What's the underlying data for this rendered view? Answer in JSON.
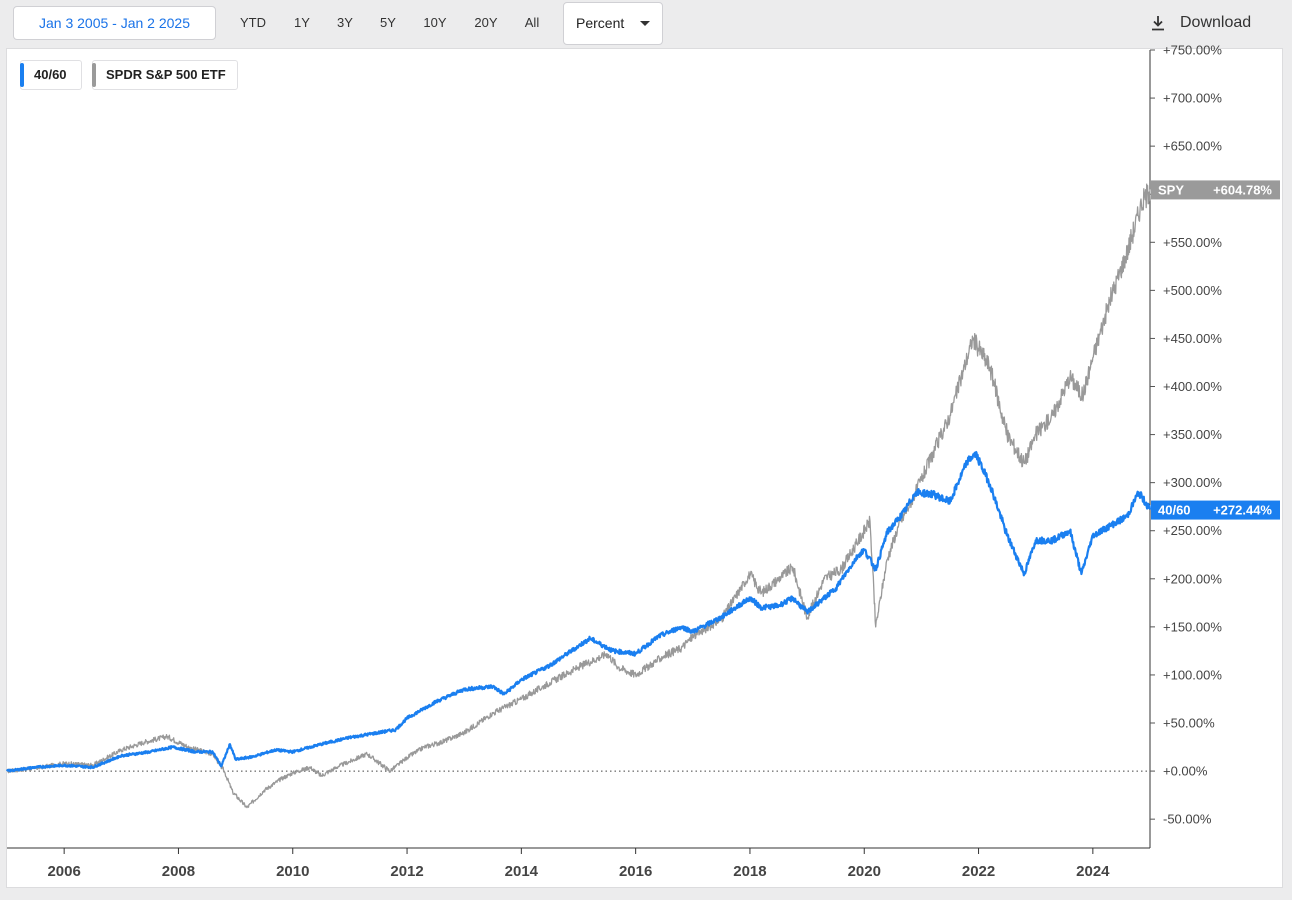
{
  "toolbar": {
    "date_range": "Jan 3 2005 - Jan 2 2025",
    "ranges": [
      "YTD",
      "1Y",
      "3Y",
      "5Y",
      "10Y",
      "20Y",
      "All"
    ],
    "mode": "Percent",
    "download": "Download"
  },
  "legend": [
    {
      "label": "40/60",
      "color": "#1a7ff0"
    },
    {
      "label": "SPDR S&P 500 ETF",
      "color": "#9a9a9a"
    }
  ],
  "tags": {
    "spy": {
      "name": "SPY",
      "value": "+604.78%"
    },
    "mix": {
      "name": "40/60",
      "value": "+272.44%"
    }
  },
  "chart_data": {
    "type": "line",
    "xlim": [
      2005.0,
      2025.0
    ],
    "ylim": [
      -80,
      750
    ],
    "x_ticks": [
      2006,
      2008,
      2010,
      2012,
      2014,
      2016,
      2018,
      2020,
      2022,
      2024
    ],
    "y_ticks": [
      {
        "v": 750,
        "label": "+750.00%"
      },
      {
        "v": 700,
        "label": "+700.00%"
      },
      {
        "v": 650,
        "label": "+650.00%"
      },
      {
        "v": 600,
        "label": "+600.00%"
      },
      {
        "v": 550,
        "label": "+550.00%"
      },
      {
        "v": 500,
        "label": "+500.00%"
      },
      {
        "v": 450,
        "label": "+450.00%"
      },
      {
        "v": 400,
        "label": "+400.00%"
      },
      {
        "v": 350,
        "label": "+350.00%"
      },
      {
        "v": 300,
        "label": "+300.00%"
      },
      {
        "v": 250,
        "label": "+250.00%"
      },
      {
        "v": 200,
        "label": "+200.00%"
      },
      {
        "v": 150,
        "label": "+150.00%"
      },
      {
        "v": 100,
        "label": "+100.00%"
      },
      {
        "v": 50,
        "label": "+50.00%"
      },
      {
        "v": 0,
        "label": "+0.00%"
      },
      {
        "v": -50,
        "label": "-50.00%"
      }
    ],
    "zero_line": true,
    "series": [
      {
        "name": "SPY",
        "color": "#999999",
        "points": [
          [
            2005.0,
            0
          ],
          [
            2005.5,
            3
          ],
          [
            2006.0,
            8
          ],
          [
            2006.5,
            6
          ],
          [
            2007.0,
            22
          ],
          [
            2007.4,
            30
          ],
          [
            2007.8,
            36
          ],
          [
            2008.2,
            24
          ],
          [
            2008.6,
            18
          ],
          [
            2008.8,
            0
          ],
          [
            2008.95,
            -22
          ],
          [
            2009.2,
            -38
          ],
          [
            2009.5,
            -20
          ],
          [
            2009.8,
            -8
          ],
          [
            2010.0,
            -2
          ],
          [
            2010.3,
            4
          ],
          [
            2010.5,
            -5
          ],
          [
            2010.8,
            5
          ],
          [
            2011.0,
            10
          ],
          [
            2011.3,
            18
          ],
          [
            2011.7,
            0
          ],
          [
            2012.0,
            14
          ],
          [
            2012.3,
            25
          ],
          [
            2012.6,
            30
          ],
          [
            2013.0,
            40
          ],
          [
            2013.5,
            60
          ],
          [
            2014.0,
            75
          ],
          [
            2014.5,
            92
          ],
          [
            2015.0,
            108
          ],
          [
            2015.5,
            122
          ],
          [
            2015.7,
            108
          ],
          [
            2016.0,
            100
          ],
          [
            2016.3,
            112
          ],
          [
            2016.5,
            120
          ],
          [
            2016.8,
            128
          ],
          [
            2017.0,
            140
          ],
          [
            2017.5,
            158
          ],
          [
            2018.0,
            205
          ],
          [
            2018.2,
            185
          ],
          [
            2018.5,
            200
          ],
          [
            2018.75,
            212
          ],
          [
            2019.0,
            160
          ],
          [
            2019.3,
            200
          ],
          [
            2019.6,
            210
          ],
          [
            2019.9,
            240
          ],
          [
            2020.1,
            260
          ],
          [
            2020.2,
            150
          ],
          [
            2020.4,
            220
          ],
          [
            2020.6,
            255
          ],
          [
            2020.9,
            290
          ],
          [
            2021.2,
            330
          ],
          [
            2021.5,
            370
          ],
          [
            2021.9,
            450
          ],
          [
            2022.2,
            420
          ],
          [
            2022.5,
            350
          ],
          [
            2022.8,
            320
          ],
          [
            2023.0,
            350
          ],
          [
            2023.3,
            370
          ],
          [
            2023.6,
            410
          ],
          [
            2023.82,
            390
          ],
          [
            2024.0,
            430
          ],
          [
            2024.3,
            490
          ],
          [
            2024.6,
            540
          ],
          [
            2024.85,
            590
          ],
          [
            2025.0,
            605
          ]
        ]
      },
      {
        "name": "40/60",
        "color": "#1a7ff0",
        "points": [
          [
            2005.0,
            0
          ],
          [
            2005.5,
            4
          ],
          [
            2006.0,
            6
          ],
          [
            2006.5,
            4
          ],
          [
            2007.0,
            16
          ],
          [
            2007.5,
            20
          ],
          [
            2007.9,
            25
          ],
          [
            2008.3,
            20
          ],
          [
            2008.6,
            20
          ],
          [
            2008.75,
            5
          ],
          [
            2008.9,
            28
          ],
          [
            2009.0,
            12
          ],
          [
            2009.3,
            15
          ],
          [
            2009.7,
            22
          ],
          [
            2010.0,
            20
          ],
          [
            2010.5,
            28
          ],
          [
            2011.0,
            35
          ],
          [
            2011.5,
            40
          ],
          [
            2011.8,
            43
          ],
          [
            2012.0,
            55
          ],
          [
            2012.5,
            72
          ],
          [
            2013.0,
            85
          ],
          [
            2013.5,
            88
          ],
          [
            2013.7,
            80
          ],
          [
            2014.0,
            95
          ],
          [
            2014.5,
            110
          ],
          [
            2015.0,
            130
          ],
          [
            2015.2,
            138
          ],
          [
            2015.6,
            125
          ],
          [
            2016.0,
            122
          ],
          [
            2016.4,
            140
          ],
          [
            2016.8,
            150
          ],
          [
            2017.0,
            145
          ],
          [
            2017.5,
            160
          ],
          [
            2018.0,
            180
          ],
          [
            2018.2,
            170
          ],
          [
            2018.5,
            172
          ],
          [
            2018.75,
            180
          ],
          [
            2019.0,
            165
          ],
          [
            2019.5,
            190
          ],
          [
            2019.9,
            225
          ],
          [
            2020.0,
            230
          ],
          [
            2020.2,
            210
          ],
          [
            2020.4,
            248
          ],
          [
            2020.7,
            270
          ],
          [
            2020.9,
            290
          ],
          [
            2021.2,
            288
          ],
          [
            2021.5,
            280
          ],
          [
            2021.8,
            322
          ],
          [
            2021.95,
            330
          ],
          [
            2022.2,
            298
          ],
          [
            2022.5,
            245
          ],
          [
            2022.8,
            205
          ],
          [
            2023.0,
            240
          ],
          [
            2023.3,
            240
          ],
          [
            2023.6,
            250
          ],
          [
            2023.8,
            205
          ],
          [
            2024.0,
            245
          ],
          [
            2024.3,
            255
          ],
          [
            2024.6,
            265
          ],
          [
            2024.8,
            290
          ],
          [
            2025.0,
            272
          ]
        ]
      }
    ]
  }
}
